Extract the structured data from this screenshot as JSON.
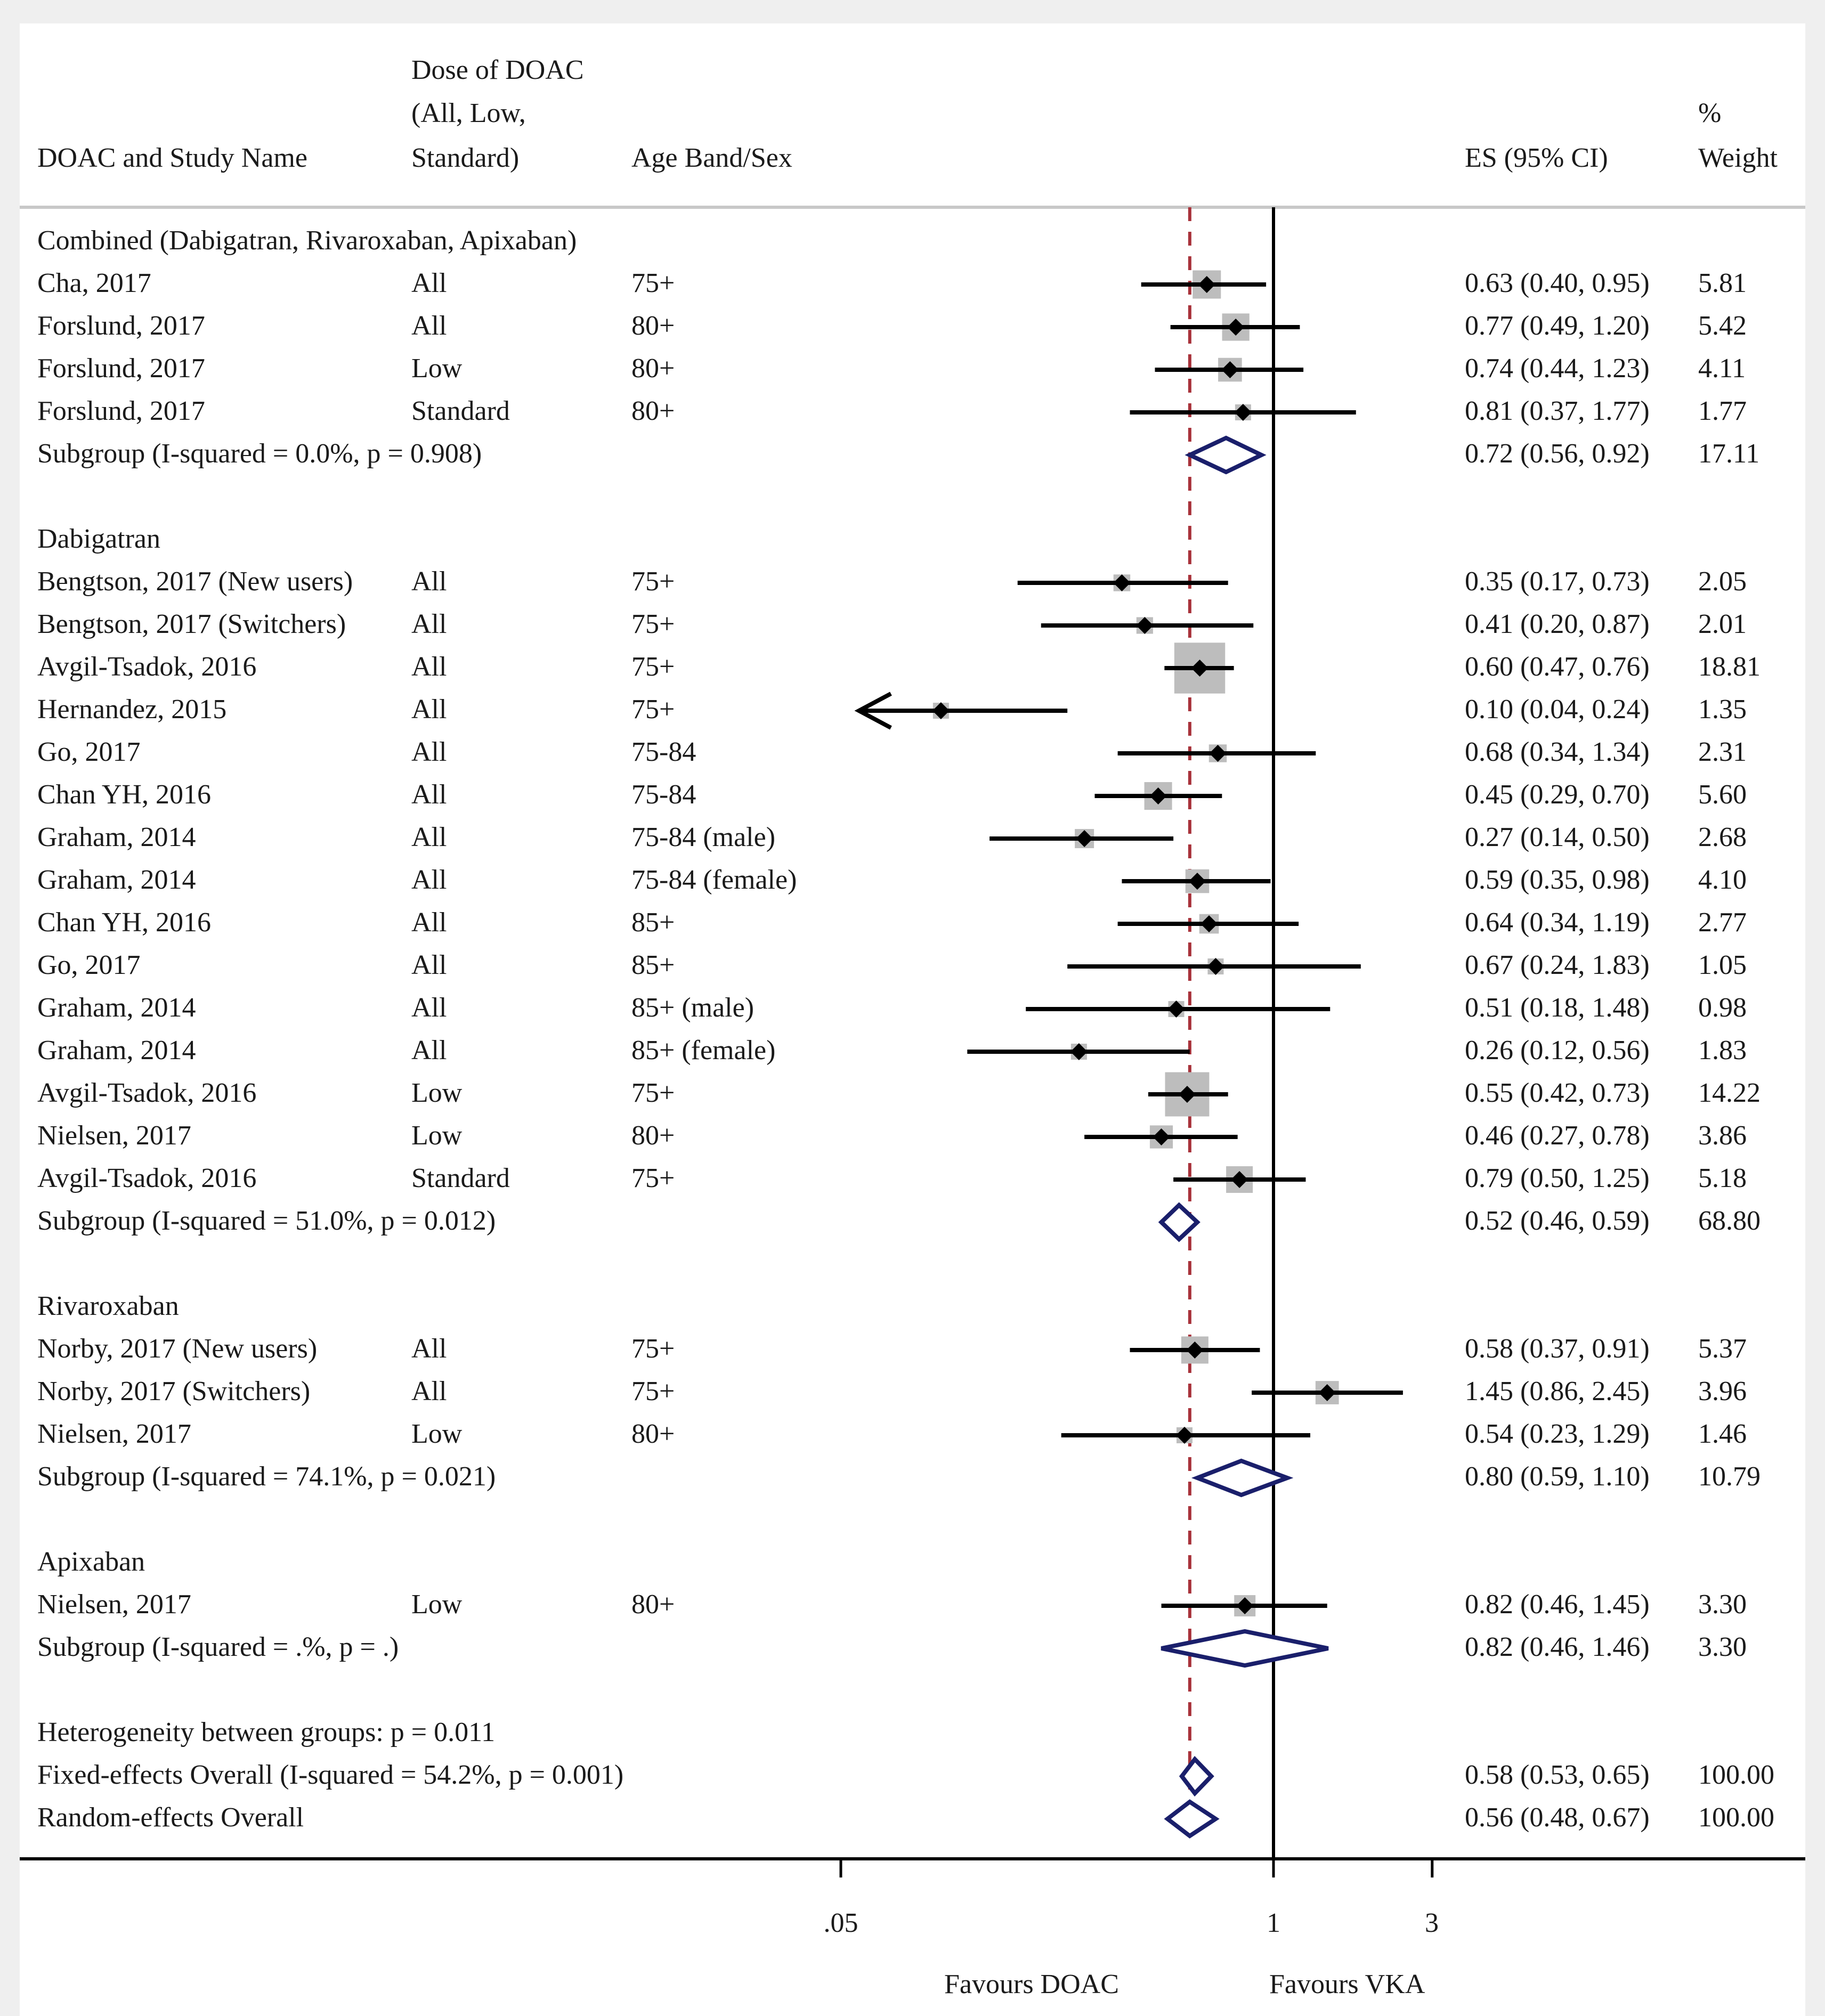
{
  "chart_data": {
    "type": "forest",
    "scale": "log",
    "x_ticks": [
      {
        "value": 0.05,
        "label": ".05"
      },
      {
        "value": 1,
        "label": "1"
      },
      {
        "value": 3,
        "label": "3"
      }
    ],
    "null_line": 1,
    "pooled_reference": 0.56,
    "favours_left": "Favours DOAC",
    "favours_right": "Favours VKA",
    "headers": {
      "study": "DOAC and Study Name",
      "dose": [
        "Dose of DOAC",
        "(All, Low,",
        "Standard)"
      ],
      "age": "Age Band/Sex",
      "es": "ES (95% CI)",
      "weight": [
        "%",
        "Weight"
      ]
    },
    "rows": [
      {
        "kind": "group",
        "label": "Combined (Dabigatran, Rivaroxaban, Apixaban)"
      },
      {
        "kind": "study",
        "name": "Cha, 2017",
        "dose": "All",
        "age": "75+",
        "es": 0.63,
        "lo": 0.4,
        "hi": 0.95,
        "ci": "0.63 (0.40, 0.95)",
        "weight": "5.81"
      },
      {
        "kind": "study",
        "name": "Forslund, 2017",
        "dose": "All",
        "age": "80+",
        "es": 0.77,
        "lo": 0.49,
        "hi": 1.2,
        "ci": "0.77 (0.49, 1.20)",
        "weight": "5.42"
      },
      {
        "kind": "study",
        "name": "Forslund, 2017",
        "dose": "Low",
        "age": "80+",
        "es": 0.74,
        "lo": 0.44,
        "hi": 1.23,
        "ci": "0.74 (0.44, 1.23)",
        "weight": "4.11"
      },
      {
        "kind": "study",
        "name": "Forslund, 2017",
        "dose": "Standard",
        "age": "80+",
        "es": 0.81,
        "lo": 0.37,
        "hi": 1.77,
        "ci": "0.81 (0.37, 1.77)",
        "weight": "1.77"
      },
      {
        "kind": "subgroup",
        "name": "Subgroup (I-squared = 0.0%, p = 0.908)",
        "es": 0.72,
        "lo": 0.56,
        "hi": 0.92,
        "ci": "0.72 (0.56, 0.92)",
        "weight": "17.11"
      },
      {
        "kind": "blank"
      },
      {
        "kind": "group",
        "label": "Dabigatran"
      },
      {
        "kind": "study",
        "name": "Bengtson, 2017 (New users)",
        "dose": "All",
        "age": "75+",
        "es": 0.35,
        "lo": 0.17,
        "hi": 0.73,
        "ci": "0.35 (0.17, 0.73)",
        "weight": "2.05"
      },
      {
        "kind": "study",
        "name": "Bengtson, 2017 (Switchers)",
        "dose": "All",
        "age": "75+",
        "es": 0.41,
        "lo": 0.2,
        "hi": 0.87,
        "ci": "0.41 (0.20, 0.87)",
        "weight": "2.01"
      },
      {
        "kind": "study",
        "name": "Avgil-Tsadok, 2016",
        "dose": "All",
        "age": "75+",
        "es": 0.6,
        "lo": 0.47,
        "hi": 0.76,
        "ci": "0.60 (0.47, 0.76)",
        "weight": "18.81"
      },
      {
        "kind": "study",
        "name": "Hernandez, 2015",
        "dose": "All",
        "age": "75+",
        "es": 0.1,
        "lo": 0.04,
        "hi": 0.24,
        "ci": "0.10 (0.04, 0.24)",
        "weight": "1.35"
      },
      {
        "kind": "study",
        "name": "Go, 2017",
        "dose": "All",
        "age": "75-84",
        "es": 0.68,
        "lo": 0.34,
        "hi": 1.34,
        "ci": "0.68 (0.34, 1.34)",
        "weight": "2.31"
      },
      {
        "kind": "study",
        "name": "Chan YH, 2016",
        "dose": "All",
        "age": "75-84",
        "es": 0.45,
        "lo": 0.29,
        "hi": 0.7,
        "ci": "0.45 (0.29, 0.70)",
        "weight": "5.60"
      },
      {
        "kind": "study",
        "name": "Graham, 2014",
        "dose": "All",
        "age": "75-84 (male)",
        "es": 0.27,
        "lo": 0.14,
        "hi": 0.5,
        "ci": "0.27 (0.14, 0.50)",
        "weight": "2.68"
      },
      {
        "kind": "study",
        "name": "Graham, 2014",
        "dose": "All",
        "age": "75-84 (female)",
        "es": 0.59,
        "lo": 0.35,
        "hi": 0.98,
        "ci": "0.59 (0.35, 0.98)",
        "weight": "4.10"
      },
      {
        "kind": "study",
        "name": "Chan YH, 2016",
        "dose": "All",
        "age": "85+",
        "es": 0.64,
        "lo": 0.34,
        "hi": 1.19,
        "ci": "0.64 (0.34, 1.19)",
        "weight": "2.77"
      },
      {
        "kind": "study",
        "name": "Go, 2017",
        "dose": "All",
        "age": "85+",
        "es": 0.67,
        "lo": 0.24,
        "hi": 1.83,
        "ci": "0.67 (0.24, 1.83)",
        "weight": "1.05"
      },
      {
        "kind": "study",
        "name": "Graham, 2014",
        "dose": "All",
        "age": "85+ (male)",
        "es": 0.51,
        "lo": 0.18,
        "hi": 1.48,
        "ci": "0.51 (0.18, 1.48)",
        "weight": "0.98"
      },
      {
        "kind": "study",
        "name": "Graham, 2014",
        "dose": "All",
        "age": "85+ (female)",
        "es": 0.26,
        "lo": 0.12,
        "hi": 0.56,
        "ci": "0.26 (0.12, 0.56)",
        "weight": "1.83"
      },
      {
        "kind": "study",
        "name": "Avgil-Tsadok, 2016",
        "dose": "Low",
        "age": "75+",
        "es": 0.55,
        "lo": 0.42,
        "hi": 0.73,
        "ci": "0.55 (0.42, 0.73)",
        "weight": "14.22"
      },
      {
        "kind": "study",
        "name": "Nielsen, 2017",
        "dose": "Low",
        "age": "80+",
        "es": 0.46,
        "lo": 0.27,
        "hi": 0.78,
        "ci": "0.46 (0.27, 0.78)",
        "weight": "3.86"
      },
      {
        "kind": "study",
        "name": "Avgil-Tsadok, 2016",
        "dose": "Standard",
        "age": "75+",
        "es": 0.79,
        "lo": 0.5,
        "hi": 1.25,
        "ci": "0.79 (0.50, 1.25)",
        "weight": "5.18"
      },
      {
        "kind": "subgroup",
        "name": "Subgroup (I-squared = 51.0%, p = 0.012)",
        "es": 0.52,
        "lo": 0.46,
        "hi": 0.59,
        "ci": "0.52 (0.46, 0.59)",
        "weight": "68.80"
      },
      {
        "kind": "blank"
      },
      {
        "kind": "group",
        "label": "Rivaroxaban"
      },
      {
        "kind": "study",
        "name": "Norby, 2017 (New users)",
        "dose": "All",
        "age": "75+",
        "es": 0.58,
        "lo": 0.37,
        "hi": 0.91,
        "ci": "0.58 (0.37, 0.91)",
        "weight": "5.37"
      },
      {
        "kind": "study",
        "name": "Norby, 2017 (Switchers)",
        "dose": "All",
        "age": "75+",
        "es": 1.45,
        "lo": 0.86,
        "hi": 2.45,
        "ci": "1.45 (0.86, 2.45)",
        "weight": "3.96"
      },
      {
        "kind": "study",
        "name": "Nielsen, 2017",
        "dose": "Low",
        "age": "80+",
        "es": 0.54,
        "lo": 0.23,
        "hi": 1.29,
        "ci": "0.54 (0.23, 1.29)",
        "weight": "1.46"
      },
      {
        "kind": "subgroup",
        "name": "Subgroup (I-squared = 74.1%, p = 0.021)",
        "es": 0.8,
        "lo": 0.59,
        "hi": 1.1,
        "ci": "0.80 (0.59, 1.10)",
        "weight": "10.79"
      },
      {
        "kind": "blank"
      },
      {
        "kind": "group",
        "label": "Apixaban"
      },
      {
        "kind": "study",
        "name": "Nielsen, 2017",
        "dose": "Low",
        "age": "80+",
        "es": 0.82,
        "lo": 0.46,
        "hi": 1.45,
        "ci": "0.82 (0.46, 1.45)",
        "weight": "3.30"
      },
      {
        "kind": "subgroup",
        "name": "Subgroup (I-squared = .%, p = .)",
        "es": 0.82,
        "lo": 0.46,
        "hi": 1.46,
        "ci": "0.82 (0.46, 1.46)",
        "weight": "3.30"
      },
      {
        "kind": "blank"
      },
      {
        "kind": "group",
        "label": "Heterogeneity between groups: p = 0.011"
      },
      {
        "kind": "overall",
        "name": "Fixed-effects Overall (I-squared = 54.2%, p = 0.001)",
        "es": 0.58,
        "lo": 0.53,
        "hi": 0.65,
        "ci": "0.58 (0.53, 0.65)",
        "weight": "100.00"
      },
      {
        "kind": "overall",
        "name": "Random-effects Overall",
        "es": 0.56,
        "lo": 0.48,
        "hi": 0.67,
        "ci": "0.56 (0.48, 0.67)",
        "weight": "100.00"
      }
    ]
  },
  "colors": {
    "marker": "#000000",
    "weight_box": "#bdbdbd",
    "diamond": "#1a1f6b",
    "ref_line": "#a8323a",
    "axis": "#000000",
    "rule": "#c8c8c8"
  }
}
